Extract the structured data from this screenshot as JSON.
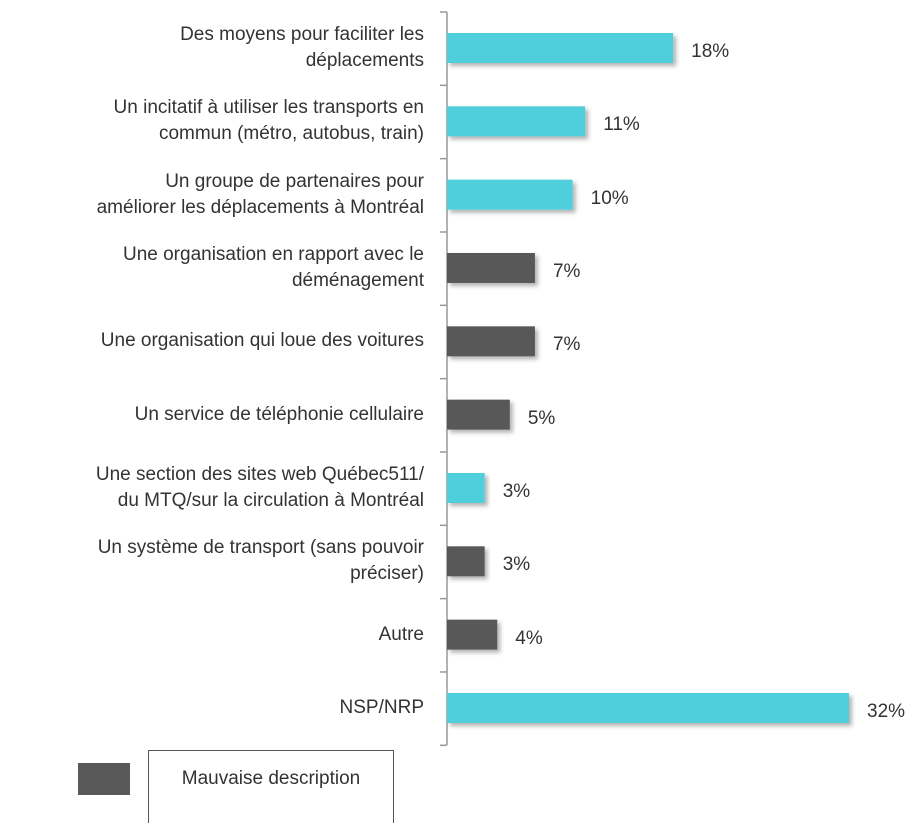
{
  "chart_data": {
    "type": "hbar",
    "categories": [
      "Des moyens pour faciliter les\ndéplacements",
      "Un incitatif à utiliser les transports en\ncommun (métro, autobus, train)",
      "Un groupe de partenaires pour\naméliorer les déplacements à Montréal",
      "Une organisation en rapport avec le\ndéménagement",
      "Une organisation qui loue des voitures",
      "Un service de téléphonie cellulaire",
      "Une section des sites web Québec511/\ndu MTQ/sur la circulation à Montréal",
      "Un système de transport (sans pouvoir\npréciser)",
      "Autre",
      "NSP/NRP"
    ],
    "values": [
      18,
      11,
      10,
      7,
      7,
      5,
      3,
      3,
      4,
      32
    ],
    "value_labels": [
      "18%",
      "11%",
      "10%",
      "7%",
      "7%",
      "5%",
      "3%",
      "3%",
      "4%",
      "32%"
    ],
    "colors": [
      "#4fcedb",
      "#4fcedb",
      "#4fcedb",
      "#595959",
      "#595959",
      "#595959",
      "#4fcedb",
      "#595959",
      "#595959",
      "#4fcedb"
    ],
    "legend": {
      "label": "Mauvaise description",
      "color": "#595959"
    }
  }
}
